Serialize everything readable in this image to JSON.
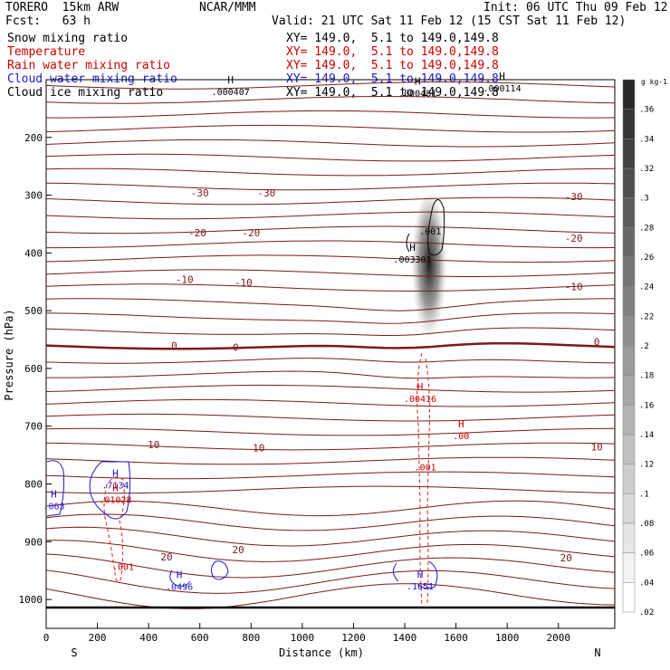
{
  "header": {
    "model": "TORERO  15km ARW",
    "org": "NCAR/MMM",
    "init": "Init: 06 UTC Thu 09 Feb 12",
    "fcst": "Fcst:   63 h",
    "valid": "Valid: 21 UTC Sat 11 Feb 12 (15 CST Sat 11 Feb 12)"
  },
  "legend": [
    {
      "name": "Snow mixing ratio",
      "xy": "XY= 149.0,  5.1 to 149.0,149.8",
      "color": "#000000"
    },
    {
      "name": "Temperature",
      "xy": "XY= 149.0,  5.1 to 149.0,149.8",
      "color": "#cc0000"
    },
    {
      "name": "Rain water mixing ratio",
      "xy": "XY= 149.0,  5.1 to 149.0,149.8",
      "color": "#cc0000"
    },
    {
      "name": "Cloud water mixing ratio",
      "xy": "XY= 149.0,  5.1 to 149.0,149.8",
      "color": "#1a1acc"
    },
    {
      "name": "Cloud ice mixing ratio",
      "xy": "XY= 149.0,  5.1 to 149.0,149.8",
      "color": "#000000"
    }
  ],
  "chart_data": {
    "type": "cross-section",
    "xlabel": "Distance (km)",
    "ylabel": "Pressure (hPa)",
    "x_ticks": [
      0,
      200,
      400,
      600,
      800,
      1000,
      1200,
      1400,
      1600,
      1800,
      2000
    ],
    "y_ticks": [
      200,
      300,
      400,
      500,
      600,
      700,
      800,
      900,
      1000
    ],
    "xlim": [
      0,
      2220
    ],
    "ylim": [
      1050,
      100
    ],
    "x_end_labels": {
      "left": "S",
      "right": "N"
    },
    "temperature_labels": [
      {
        "text": "-30",
        "x": 600,
        "p": 296
      },
      {
        "text": "-30",
        "x": 860,
        "p": 296
      },
      {
        "text": "-30",
        "x": 2060,
        "p": 302
      },
      {
        "text": "-20",
        "x": 590,
        "p": 365
      },
      {
        "text": "-20",
        "x": 800,
        "p": 365
      },
      {
        "text": "-20",
        "x": 2060,
        "p": 374
      },
      {
        "text": "-10",
        "x": 540,
        "p": 446
      },
      {
        "text": "-10",
        "x": 770,
        "p": 451
      },
      {
        "text": "-10",
        "x": 2060,
        "p": 458
      },
      {
        "text": "0",
        "x": 500,
        "p": 560
      },
      {
        "text": "0",
        "x": 740,
        "p": 563
      },
      {
        "text": "0",
        "x": 2150,
        "p": 554
      },
      {
        "text": "10",
        "x": 420,
        "p": 732
      },
      {
        "text": "10",
        "x": 830,
        "p": 737
      },
      {
        "text": "10",
        "x": 2150,
        "p": 736
      },
      {
        "text": "20",
        "x": 470,
        "p": 926
      },
      {
        "text": "20",
        "x": 750,
        "p": 914
      },
      {
        "text": "20",
        "x": 2030,
        "p": 928
      }
    ],
    "maxima": [
      {
        "field": "Snow mixing ratio",
        "value": ".000407",
        "x": 720,
        "p": 122
      },
      {
        "field": "Snow mixing ratio",
        "value": ".000114",
        "x": 1780,
        "p": 116
      },
      {
        "field": "Cloud ice mixing ratio",
        "value": ".000481",
        "x": 1450,
        "p": 124
      },
      {
        "field": "Cloud ice mixing ratio",
        "value": ".003301",
        "x": 1430,
        "p": 412
      },
      {
        "field": "Temperature",
        "value": ".00416",
        "x": 1460,
        "p": 653
      },
      {
        "field": "Temperature",
        "value": ".00",
        "x": 1620,
        "p": 718
      },
      {
        "field": "Cloud water mixing ratio",
        "value": ".7134",
        "x": 270,
        "p": 803
      },
      {
        "field": "Rain water mixing ratio",
        "value": ".01028",
        "x": 270,
        "p": 828
      },
      {
        "field": "Cloud water mixing ratio",
        "value": ".063",
        "x": 30,
        "p": 839
      },
      {
        "field": "Cloud water mixing ratio",
        "value": ".0496",
        "x": 520,
        "p": 979
      },
      {
        "field": "Cloud water mixing ratio",
        "value": ".1651",
        "x": 1460,
        "p": 978
      }
    ],
    "contour_labels": [
      {
        "field": "Cloud ice mixing ratio",
        "text": ".001",
        "x": 1500,
        "p": 362
      },
      {
        "field": "Rain water mixing ratio",
        "text": ".001",
        "x": 1480,
        "p": 770
      },
      {
        "field": "Rain water mixing ratio",
        "text": ".001",
        "x": 300,
        "p": 943
      }
    ],
    "colorbar": {
      "units": "g kg-1",
      "labels": [
        ".36",
        ".34",
        ".32",
        ".3",
        ".28",
        ".26",
        ".24",
        ".22",
        ".2",
        ".18",
        ".16",
        ".14",
        ".12",
        ".1",
        ".08",
        ".06",
        ".04",
        ".02"
      ]
    }
  }
}
